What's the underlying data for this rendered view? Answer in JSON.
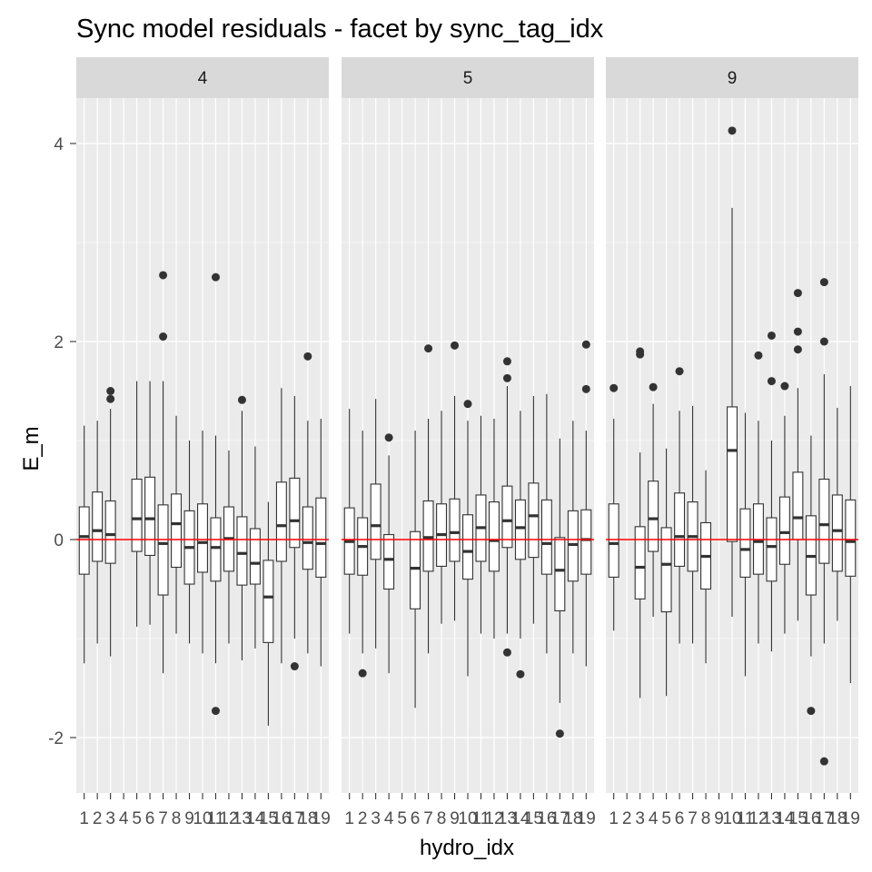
{
  "chart_data": {
    "type": "boxplot",
    "title": "Sync model residuals - facet by sync_tag_idx",
    "xlabel": "hydro_idx",
    "ylabel": "E_m",
    "ylim": [
      -2.6,
      4.5
    ],
    "y_ticks": [
      -2,
      0,
      2,
      4
    ],
    "x_categories": [
      "1",
      "2",
      "3",
      "4",
      "5",
      "6",
      "7",
      "8",
      "9",
      "10",
      "11",
      "12",
      "13",
      "14",
      "15",
      "16",
      "17",
      "18",
      "19"
    ],
    "x_tick_labels": [
      "1",
      "2",
      "3",
      "4",
      "5",
      "6",
      "7",
      "8",
      "9",
      "10",
      "11",
      "12",
      "13",
      "14",
      "15",
      "16",
      "17",
      "18",
      "19"
    ],
    "reference_line": 0,
    "colors": {
      "panel_bg": "#ebebeb",
      "grid": "#ffffff",
      "strip_bg": "#d9d9d9",
      "box_fill": "#ffffff",
      "box_line": "#333333",
      "reference_line": "#ff0000",
      "tick": "#333333"
    },
    "panels": [
      {
        "label": "4",
        "boxes": [
          {
            "x": 1,
            "q1": -0.35,
            "median": 0.03,
            "q3": 0.33,
            "low": -1.25,
            "high": 1.15,
            "outliers": []
          },
          {
            "x": 2,
            "q1": -0.22,
            "median": 0.09,
            "q3": 0.48,
            "low": -1.05,
            "high": 1.2,
            "outliers": []
          },
          {
            "x": 3,
            "q1": -0.24,
            "median": 0.05,
            "q3": 0.39,
            "low": -1.18,
            "high": 1.32,
            "outliers": [
              1.5,
              1.42
            ]
          },
          {
            "x": 5,
            "q1": -0.12,
            "median": 0.21,
            "q3": 0.61,
            "low": -0.88,
            "high": 1.6,
            "outliers": []
          },
          {
            "x": 6,
            "q1": -0.16,
            "median": 0.21,
            "q3": 0.63,
            "low": -0.86,
            "high": 1.6,
            "outliers": []
          },
          {
            "x": 7,
            "q1": -0.56,
            "median": -0.04,
            "q3": 0.35,
            "low": -1.35,
            "high": 1.6,
            "outliers": [
              2.67,
              2.05
            ]
          },
          {
            "x": 8,
            "q1": -0.28,
            "median": 0.16,
            "q3": 0.46,
            "low": -0.95,
            "high": 1.25,
            "outliers": []
          },
          {
            "x": 9,
            "q1": -0.45,
            "median": -0.08,
            "q3": 0.29,
            "low": -1.05,
            "high": 1.0,
            "outliers": []
          },
          {
            "x": 10,
            "q1": -0.33,
            "median": -0.03,
            "q3": 0.36,
            "low": -1.15,
            "high": 1.1,
            "outliers": []
          },
          {
            "x": 11,
            "q1": -0.42,
            "median": -0.08,
            "q3": 0.22,
            "low": -1.25,
            "high": 1.05,
            "outliers": [
              2.65,
              -1.73
            ]
          },
          {
            "x": 12,
            "q1": -0.32,
            "median": 0.01,
            "q3": 0.33,
            "low": -1.05,
            "high": 0.9,
            "outliers": []
          },
          {
            "x": 13,
            "q1": -0.46,
            "median": -0.14,
            "q3": 0.23,
            "low": -1.22,
            "high": 1.3,
            "outliers": [
              1.41
            ]
          },
          {
            "x": 14,
            "q1": -0.45,
            "median": -0.24,
            "q3": 0.11,
            "low": -1.1,
            "high": 0.94,
            "outliers": []
          },
          {
            "x": 15,
            "q1": -1.04,
            "median": -0.58,
            "q3": -0.21,
            "low": -1.88,
            "high": 0.38,
            "outliers": []
          },
          {
            "x": 16,
            "q1": -0.22,
            "median": 0.14,
            "q3": 0.58,
            "low": -1.25,
            "high": 1.53,
            "outliers": []
          },
          {
            "x": 17,
            "q1": -0.08,
            "median": 0.19,
            "q3": 0.62,
            "low": -1.0,
            "high": 1.45,
            "outliers": [
              -1.28
            ]
          },
          {
            "x": 18,
            "q1": -0.3,
            "median": -0.03,
            "q3": 0.33,
            "low": -1.15,
            "high": 1.2,
            "outliers": [
              1.85
            ]
          },
          {
            "x": 19,
            "q1": -0.38,
            "median": -0.04,
            "q3": 0.42,
            "low": -1.28,
            "high": 1.22,
            "outliers": []
          }
        ]
      },
      {
        "label": "5",
        "boxes": [
          {
            "x": 1,
            "q1": -0.35,
            "median": -0.02,
            "q3": 0.32,
            "low": -0.95,
            "high": 1.32,
            "outliers": []
          },
          {
            "x": 2,
            "q1": -0.36,
            "median": -0.07,
            "q3": 0.22,
            "low": -1.15,
            "high": 1.1,
            "outliers": [
              -1.35
            ]
          },
          {
            "x": 3,
            "q1": -0.2,
            "median": 0.14,
            "q3": 0.56,
            "low": -1.1,
            "high": 1.42,
            "outliers": []
          },
          {
            "x": 4,
            "q1": -0.5,
            "median": -0.2,
            "q3": 0.05,
            "low": -1.35,
            "high": 0.85,
            "outliers": [
              1.03
            ]
          },
          {
            "x": 6,
            "q1": -0.7,
            "median": -0.29,
            "q3": 0.08,
            "low": -1.7,
            "high": 1.1,
            "outliers": []
          },
          {
            "x": 7,
            "q1": -0.32,
            "median": 0.02,
            "q3": 0.39,
            "low": -1.15,
            "high": 1.22,
            "outliers": [
              1.93
            ]
          },
          {
            "x": 8,
            "q1": -0.27,
            "median": 0.05,
            "q3": 0.36,
            "low": -0.85,
            "high": 1.3,
            "outliers": []
          },
          {
            "x": 9,
            "q1": -0.22,
            "median": 0.07,
            "q3": 0.41,
            "low": -0.82,
            "high": 1.45,
            "outliers": [
              1.96
            ]
          },
          {
            "x": 10,
            "q1": -0.4,
            "median": -0.12,
            "q3": 0.25,
            "low": -1.38,
            "high": 1.2,
            "outliers": [
              1.37
            ]
          },
          {
            "x": 11,
            "q1": -0.22,
            "median": 0.12,
            "q3": 0.45,
            "low": -0.95,
            "high": 1.25,
            "outliers": []
          },
          {
            "x": 12,
            "q1": -0.32,
            "median": -0.01,
            "q3": 0.38,
            "low": -1.0,
            "high": 1.22,
            "outliers": []
          },
          {
            "x": 13,
            "q1": -0.08,
            "median": 0.19,
            "q3": 0.54,
            "low": -0.95,
            "high": 1.55,
            "outliers": [
              1.8,
              1.63,
              -1.14
            ]
          },
          {
            "x": 14,
            "q1": -0.2,
            "median": 0.12,
            "q3": 0.4,
            "low": -1.0,
            "high": 1.3,
            "outliers": [
              -1.36
            ]
          },
          {
            "x": 15,
            "q1": -0.18,
            "median": 0.24,
            "q3": 0.57,
            "low": -0.85,
            "high": 1.45,
            "outliers": []
          },
          {
            "x": 16,
            "q1": -0.35,
            "median": -0.04,
            "q3": 0.4,
            "low": -1.15,
            "high": 1.47,
            "outliers": []
          },
          {
            "x": 17,
            "q1": -0.72,
            "median": -0.31,
            "q3": 0.02,
            "low": -1.65,
            "high": 1.02,
            "outliers": [
              -1.96
            ]
          },
          {
            "x": 18,
            "q1": -0.42,
            "median": -0.05,
            "q3": 0.29,
            "low": -1.15,
            "high": 1.2,
            "outliers": []
          },
          {
            "x": 19,
            "q1": -0.35,
            "median": 0.0,
            "q3": 0.3,
            "low": -1.28,
            "high": 1.1,
            "outliers": [
              1.97,
              1.52
            ]
          }
        ]
      },
      {
        "label": "9",
        "boxes": [
          {
            "x": 1,
            "q1": -0.38,
            "median": -0.04,
            "q3": 0.36,
            "low": -0.92,
            "high": 1.22,
            "outliers": [
              1.53
            ]
          },
          {
            "x": 3,
            "q1": -0.6,
            "median": -0.28,
            "q3": 0.13,
            "low": -1.6,
            "high": 0.88,
            "outliers": [
              1.9,
              1.87
            ]
          },
          {
            "x": 4,
            "q1": -0.12,
            "median": 0.21,
            "q3": 0.59,
            "low": -0.78,
            "high": 1.37,
            "outliers": [
              1.54
            ]
          },
          {
            "x": 5,
            "q1": -0.73,
            "median": -0.25,
            "q3": 0.12,
            "low": -1.58,
            "high": 0.92,
            "outliers": []
          },
          {
            "x": 6,
            "q1": -0.27,
            "median": 0.03,
            "q3": 0.47,
            "low": -1.05,
            "high": 1.3,
            "outliers": [
              1.7
            ]
          },
          {
            "x": 7,
            "q1": -0.32,
            "median": 0.03,
            "q3": 0.38,
            "low": -1.05,
            "high": 1.35,
            "outliers": []
          },
          {
            "x": 8,
            "q1": -0.5,
            "median": -0.17,
            "q3": 0.17,
            "low": -1.25,
            "high": 0.7,
            "outliers": []
          },
          {
            "x": 10,
            "q1": -0.02,
            "median": 0.9,
            "q3": 1.34,
            "low": -0.78,
            "high": 3.35,
            "outliers": [
              4.13
            ]
          },
          {
            "x": 11,
            "q1": -0.38,
            "median": -0.1,
            "q3": 0.31,
            "low": -1.38,
            "high": 1.28,
            "outliers": []
          },
          {
            "x": 12,
            "q1": -0.35,
            "median": -0.02,
            "q3": 0.36,
            "low": -1.05,
            "high": 1.2,
            "outliers": [
              1.86
            ]
          },
          {
            "x": 13,
            "q1": -0.42,
            "median": -0.07,
            "q3": 0.22,
            "low": -1.13,
            "high": 1.0,
            "outliers": [
              2.06,
              1.6
            ]
          },
          {
            "x": 14,
            "q1": -0.25,
            "median": 0.07,
            "q3": 0.43,
            "low": -0.95,
            "high": 1.25,
            "outliers": [
              1.55
            ]
          },
          {
            "x": 15,
            "q1": 0.0,
            "median": 0.22,
            "q3": 0.68,
            "low": -0.82,
            "high": 1.53,
            "outliers": [
              2.49,
              2.1,
              1.92
            ]
          },
          {
            "x": 16,
            "q1": -0.56,
            "median": -0.17,
            "q3": 0.24,
            "low": -1.18,
            "high": 1.05,
            "outliers": [
              -1.73
            ]
          },
          {
            "x": 17,
            "q1": -0.24,
            "median": 0.15,
            "q3": 0.61,
            "low": -1.05,
            "high": 1.67,
            "outliers": [
              2.6,
              2.0,
              -2.24
            ]
          },
          {
            "x": 18,
            "q1": -0.32,
            "median": 0.09,
            "q3": 0.45,
            "low": -0.82,
            "high": 1.33,
            "outliers": []
          },
          {
            "x": 19,
            "q1": -0.37,
            "median": -0.02,
            "q3": 0.4,
            "low": -1.45,
            "high": 1.55,
            "outliers": []
          }
        ]
      }
    ]
  }
}
